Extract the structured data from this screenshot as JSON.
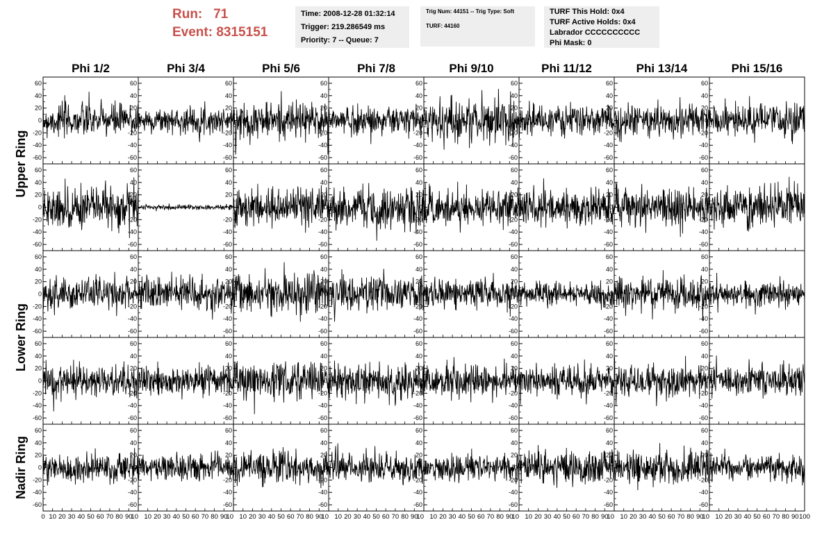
{
  "header": {
    "run_label": "Run:",
    "run_value": "71",
    "event_label": "Event:",
    "event_value": "8315151",
    "box1": [
      "Time: 2008-12-28 01:32:14",
      "Trigger: 219.286549 ms",
      "Priority: 7 -- Queue: 7"
    ],
    "box2": [
      "Trig Num: 44151 -- Trig Type: Soft",
      "TURF: 44160"
    ],
    "box3": [
      "TURF This Hold: 0x4",
      "TURF Active Holds: 0x4",
      "Labrador CCCCCCCCCC",
      "Phi Mask: 0"
    ]
  },
  "chart_data": {
    "type": "line",
    "title": "",
    "columns": [
      "Phi 1/2",
      "Phi 3/4",
      "Phi 5/6",
      "Phi 7/8",
      "Phi 9/10",
      "Phi 11/12",
      "Phi 13/14",
      "Phi 15/16"
    ],
    "row_labels": [
      {
        "label": "Upper Ring",
        "rows": [
          0,
          1
        ]
      },
      {
        "label": "Lower Ring",
        "rows": [
          2,
          3
        ]
      },
      {
        "label": "Nadir Ring",
        "rows": [
          4
        ]
      }
    ],
    "xlim": [
      0,
      100
    ],
    "ylim": [
      -70,
      70
    ],
    "x_ticks": [
      0,
      10,
      20,
      30,
      40,
      50,
      60,
      70,
      80,
      90,
      100
    ],
    "x_tick_labels_first": [
      "0",
      "10",
      "20",
      "30",
      "40",
      "50",
      "60",
      "70",
      "80",
      "90",
      "10"
    ],
    "x_tick_labels_other": [
      "10",
      "20",
      "30",
      "40",
      "50",
      "60",
      "70",
      "80",
      "90",
      "10"
    ],
    "x_tick_labels_last": [
      "10",
      "20",
      "30",
      "40",
      "50",
      "60",
      "70",
      "80",
      "90",
      "100"
    ],
    "y_ticks": [
      -60,
      -40,
      -20,
      0,
      20,
      40,
      60
    ],
    "y_tick_labels": [
      "-60",
      "-40",
      "-20",
      "0",
      "20",
      "40",
      "60"
    ],
    "waveform_samples": 260,
    "waveform_rms": [
      [
        14,
        10,
        15,
        12,
        18,
        12,
        13,
        13
      ],
      [
        17,
        2,
        16,
        18,
        14,
        14,
        15,
        17
      ],
      [
        13,
        14,
        17,
        15,
        12,
        9,
        13,
        10
      ],
      [
        14,
        13,
        14,
        15,
        13,
        12,
        13,
        13
      ],
      [
        12,
        11,
        12,
        12,
        11,
        13,
        13,
        10
      ]
    ]
  }
}
